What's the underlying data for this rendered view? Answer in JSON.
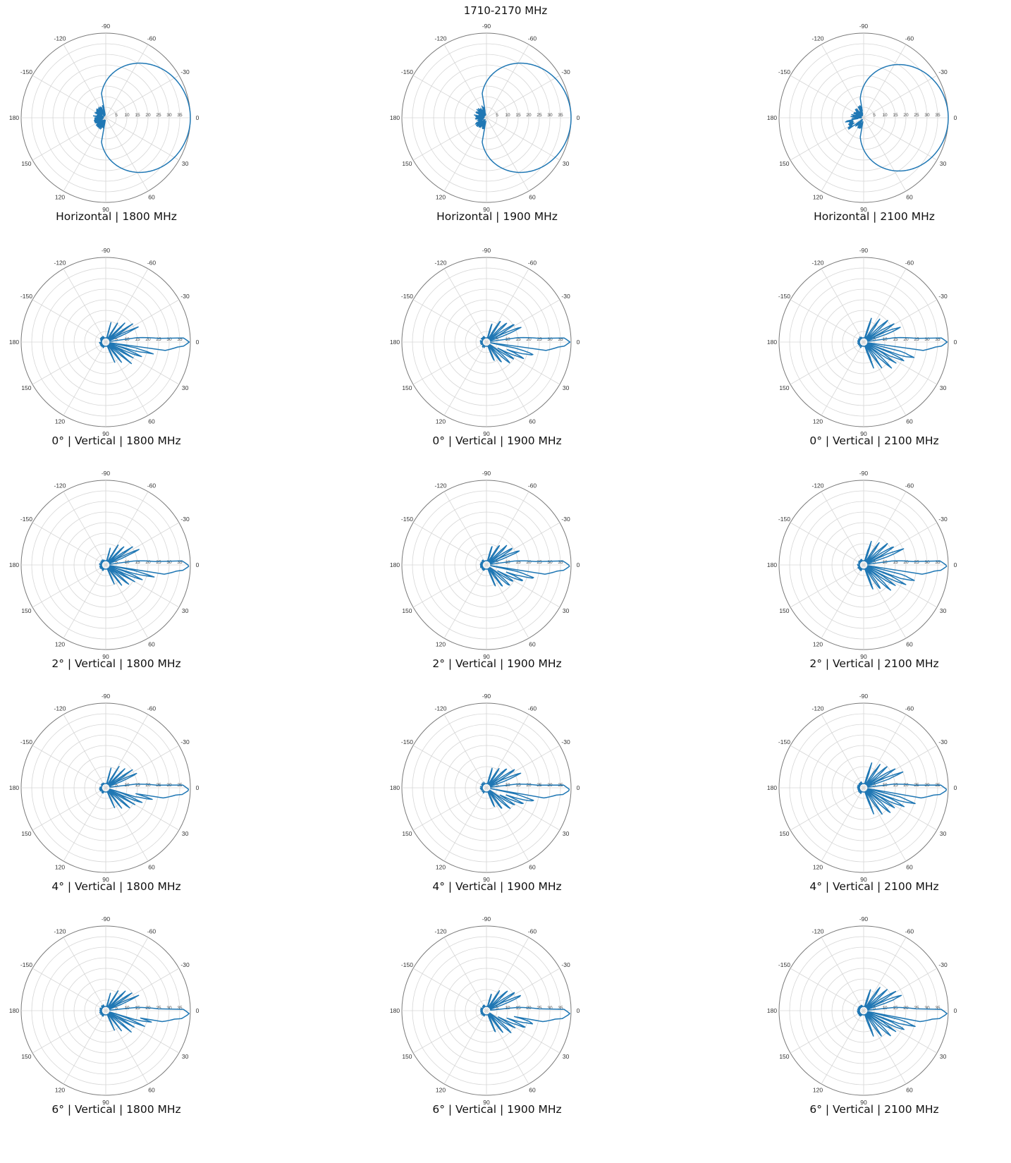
{
  "title": "1710-2170 MHz",
  "style": {
    "trace_color": "#1f77b4",
    "grid_color": "#d6d6d6",
    "outer_ring_color": "#7a7a7a"
  },
  "polar_axes": {
    "angle_tick_labels": [
      "0",
      "30",
      "60",
      "90",
      "120",
      "150",
      "180",
      "-150",
      "-120",
      "-90",
      "-60",
      "-30"
    ],
    "radial_tick_labels": [
      "35",
      "30",
      "25",
      "20",
      "15",
      "10",
      "5"
    ],
    "radial_unit_note": ""
  },
  "chart_data": [
    {
      "type": "polar",
      "caption": "Horizontal  |  1800 MHz",
      "pattern": "horizontal",
      "variant": 0,
      "r_axis": {
        "min_attenuation": 0,
        "max_attenuation": 40,
        "rings": [
          40,
          35,
          30,
          25,
          20,
          15,
          10,
          5,
          0
        ]
      },
      "peak_direction_deg": 0,
      "beamwidth_deg": 65
    },
    {
      "type": "polar",
      "caption": "Horizontal  |  1900 MHz",
      "pattern": "horizontal",
      "variant": 1,
      "r_axis": {
        "min_attenuation": 0,
        "max_attenuation": 40
      },
      "peak_direction_deg": 0,
      "beamwidth_deg": 65
    },
    {
      "type": "polar",
      "caption": "Horizontal  |  2100 MHz",
      "pattern": "horizontal",
      "variant": 2,
      "r_axis": {
        "min_attenuation": 0,
        "max_attenuation": 40
      },
      "peak_direction_deg": 0,
      "beamwidth_deg": 60
    },
    {
      "type": "polar",
      "caption": "0°  |  Vertical  |  1800 MHz",
      "pattern": "vertical",
      "tilt_deg": 0,
      "variant": 0
    },
    {
      "type": "polar",
      "caption": "0°  |  Vertical  |  1900 MHz",
      "pattern": "vertical",
      "tilt_deg": 0,
      "variant": 1
    },
    {
      "type": "polar",
      "caption": "0°  |  Vertical  |  2100 MHz",
      "pattern": "vertical",
      "tilt_deg": 0,
      "variant": 2
    },
    {
      "type": "polar",
      "caption": "2°  |  Vertical  |  1800 MHz",
      "pattern": "vertical",
      "tilt_deg": 2,
      "variant": 0
    },
    {
      "type": "polar",
      "caption": "2°  |  Vertical  |  1900 MHz",
      "pattern": "vertical",
      "tilt_deg": 2,
      "variant": 1
    },
    {
      "type": "polar",
      "caption": "2°  |  Vertical  |  2100 MHz",
      "pattern": "vertical",
      "tilt_deg": 2,
      "variant": 2
    },
    {
      "type": "polar",
      "caption": "4°  |  Vertical  |  1800 MHz",
      "pattern": "vertical",
      "tilt_deg": 4,
      "variant": 0
    },
    {
      "type": "polar",
      "caption": "4°  |  Vertical  |  1900 MHz",
      "pattern": "vertical",
      "tilt_deg": 4,
      "variant": 1
    },
    {
      "type": "polar",
      "caption": "4°  |  Vertical  |  2100 MHz",
      "pattern": "vertical",
      "tilt_deg": 4,
      "variant": 2
    },
    {
      "type": "polar",
      "caption": "6°  |  Vertical  |  1800 MHz",
      "pattern": "vertical",
      "tilt_deg": 6,
      "variant": 0
    },
    {
      "type": "polar",
      "caption": "6°  |  Vertical  |  1900 MHz",
      "pattern": "vertical",
      "tilt_deg": 6,
      "variant": 1
    },
    {
      "type": "polar",
      "caption": "6°  |  Vertical  |  2100 MHz",
      "pattern": "vertical",
      "tilt_deg": 6,
      "variant": 2
    }
  ]
}
